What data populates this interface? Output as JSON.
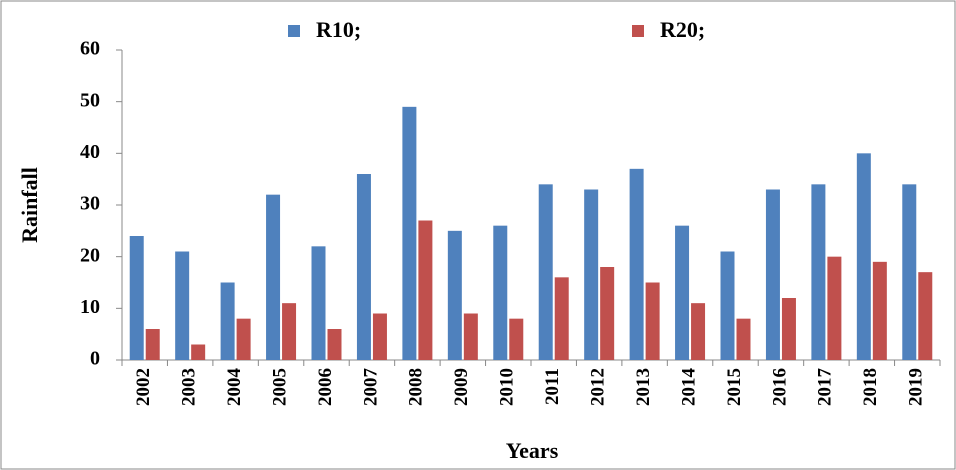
{
  "chart_data": {
    "type": "bar",
    "categories": [
      "2002",
      "2003",
      "2004",
      "2005",
      "2006",
      "2007",
      "2008",
      "2009",
      "2010",
      "2011",
      "2012",
      "2013",
      "2014",
      "2015",
      "2016",
      "2017",
      "2018",
      "2019"
    ],
    "series": [
      {
        "name": "R10;",
        "color": "#4f81bd",
        "values": [
          24,
          21,
          15,
          32,
          22,
          36,
          49,
          25,
          26,
          34,
          33,
          37,
          26,
          21,
          33,
          34,
          40,
          34
        ]
      },
      {
        "name": "R20;",
        "color": "#c0504d",
        "values": [
          6,
          3,
          8,
          11,
          6,
          9,
          27,
          9,
          8,
          16,
          18,
          15,
          11,
          8,
          12,
          20,
          19,
          17
        ]
      }
    ],
    "y_label": "Rainfall",
    "x_label": "Years",
    "ylim": [
      0,
      60
    ],
    "yticks": [
      0,
      10,
      20,
      30,
      40,
      50,
      60
    ],
    "legend": "top"
  }
}
